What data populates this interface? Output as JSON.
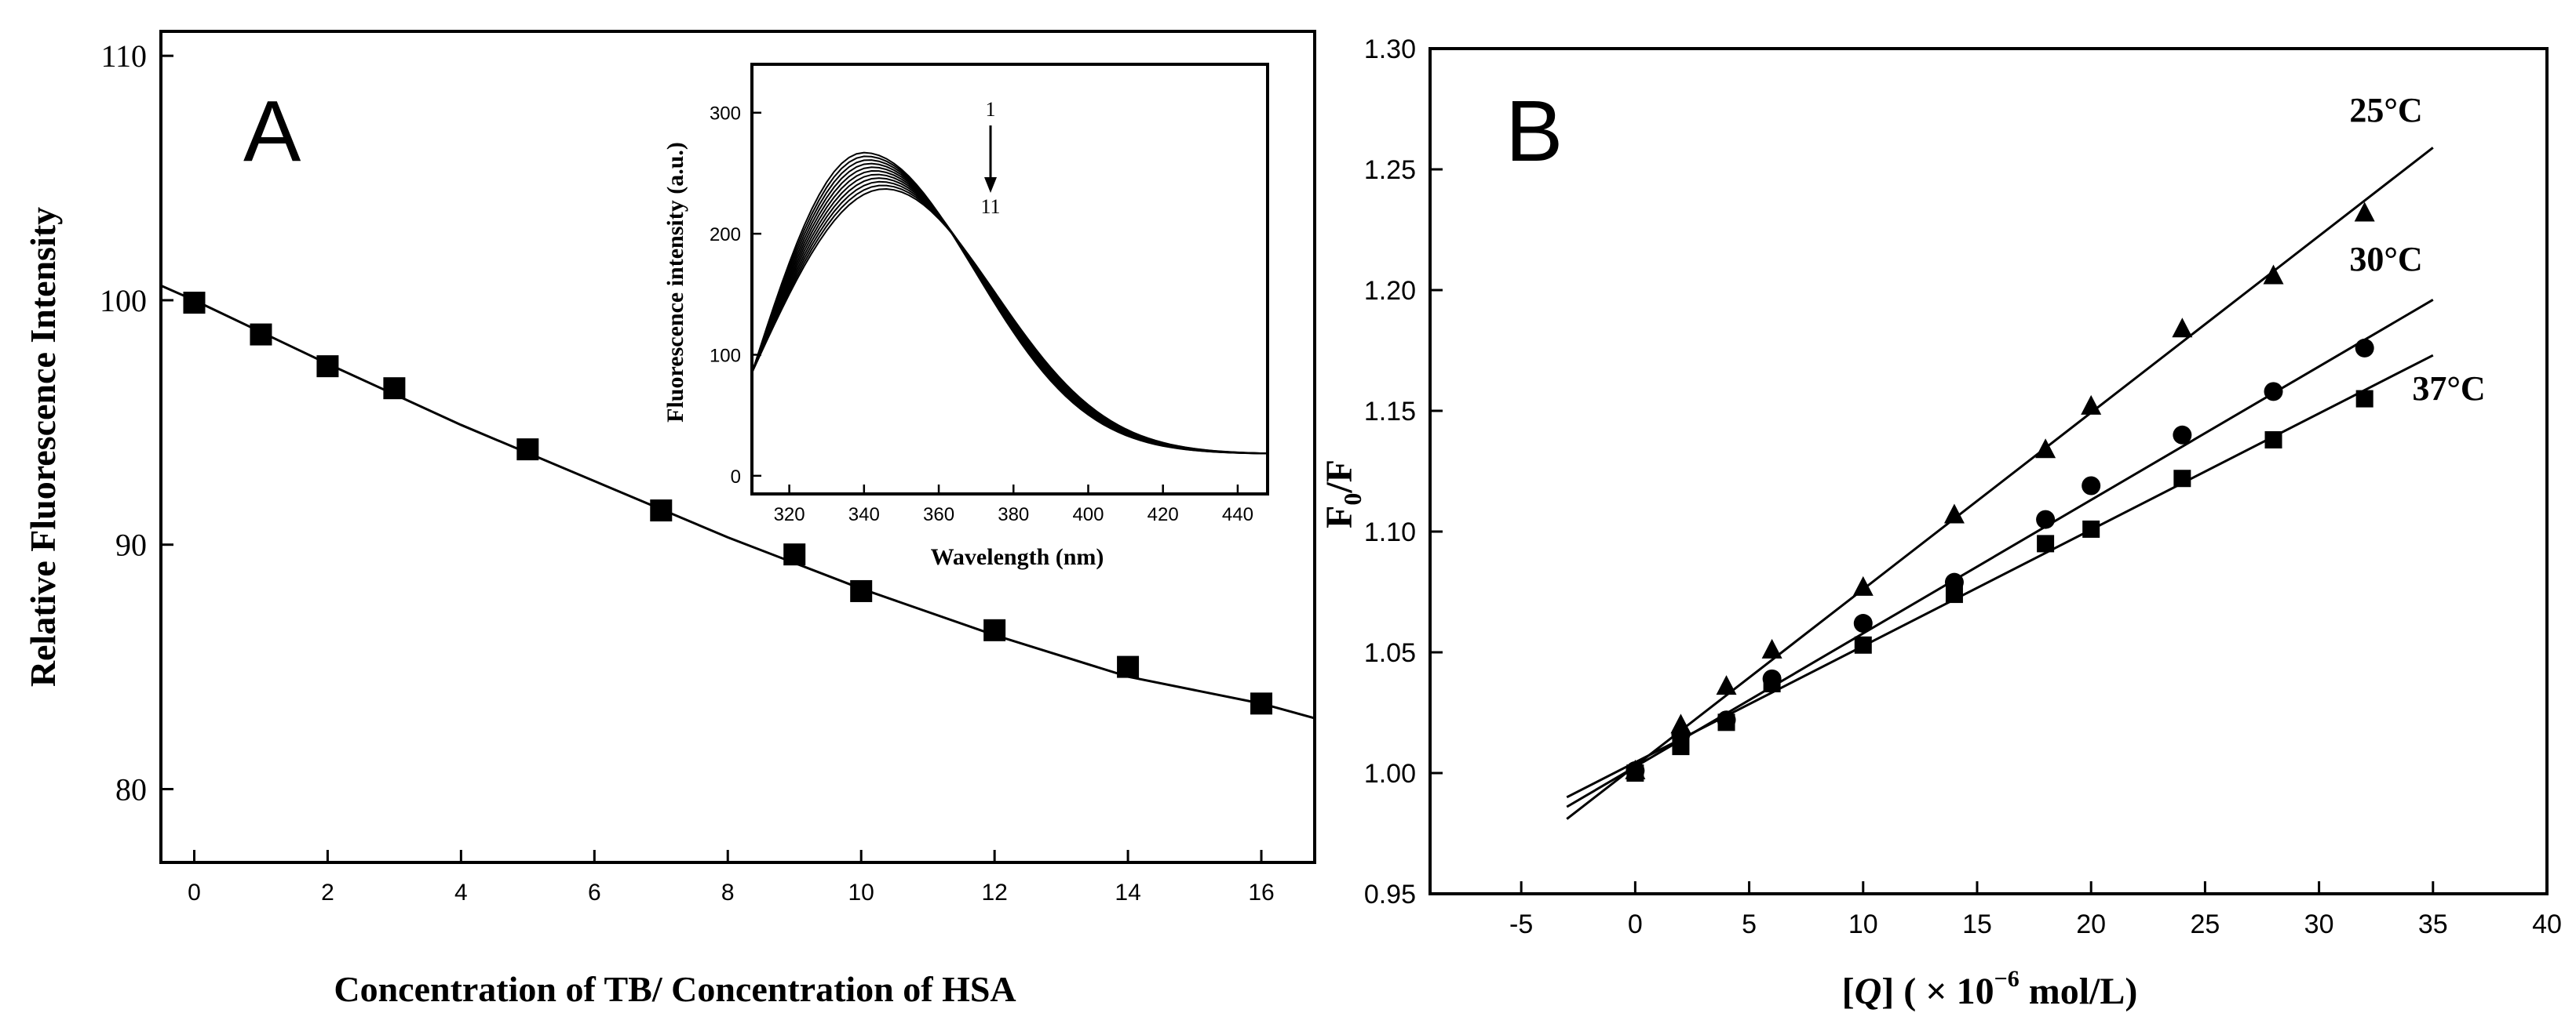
{
  "chart_data": [
    {
      "panel": "A",
      "panel_label": "A",
      "type": "scatter",
      "xlabel": "Concentration of TB/ Concentration of HSA",
      "ylabel": "Relative Fluorescence Intensity",
      "xlim": [
        -0.5,
        16.8
      ],
      "ylim": [
        77,
        111
      ],
      "xticks": [
        0,
        2,
        4,
        6,
        8,
        10,
        12,
        14,
        16
      ],
      "yticks": [
        80,
        90,
        100,
        110
      ],
      "points": {
        "x": [
          0,
          1,
          2,
          3,
          5,
          7,
          9,
          10,
          12,
          14,
          16
        ],
        "y": [
          99.9,
          98.6,
          97.3,
          96.4,
          93.9,
          91.4,
          89.6,
          88.1,
          86.5,
          85.0,
          83.5
        ]
      },
      "fit_curve": {
        "x": [
          -0.5,
          0,
          2,
          4,
          6,
          8,
          10,
          12,
          14,
          16,
          16.8
        ],
        "y": [
          100.6,
          100.0,
          97.4,
          94.9,
          92.6,
          90.3,
          88.2,
          86.3,
          84.6,
          83.5,
          82.9
        ]
      },
      "inset": {
        "type": "line",
        "xlabel": "Wavelength (nm)",
        "ylabel": "Fluorescence intensity (a.u.)",
        "xlim": [
          310,
          448
        ],
        "ylim": [
          -15,
          340
        ],
        "xticks": [
          320,
          340,
          360,
          380,
          400,
          420,
          440
        ],
        "yticks": [
          0,
          100,
          200,
          300
        ],
        "arrow_start_label": "1",
        "arrow_end_label": "11",
        "series_peak_values": [
          267,
          264,
          261,
          258,
          255,
          252,
          249,
          246,
          243,
          240,
          237
        ]
      }
    },
    {
      "panel": "B",
      "panel_label": "B",
      "type": "scatter",
      "xlabel_parts": {
        "open": "[",
        "var": "Q",
        "mid": "] ( × 10",
        "sup": "−6",
        "end": " mol/L)"
      },
      "ylabel_parts": {
        "main": "F",
        "sub": "0",
        "end": "/F"
      },
      "xlim": [
        -9,
        40
      ],
      "ylim": [
        0.95,
        1.3
      ],
      "xticks": [
        -5,
        0,
        5,
        10,
        15,
        20,
        25,
        30,
        35,
        40
      ],
      "yticks": [
        0.95,
        1.0,
        1.05,
        1.1,
        1.15,
        1.2,
        1.25,
        1.3
      ],
      "series": [
        {
          "name": "25°C",
          "marker": "triangle",
          "x": [
            0,
            2,
            4,
            6,
            10,
            14,
            18,
            20,
            24,
            28,
            32
          ],
          "y": [
            1.001,
            1.02,
            1.036,
            1.051,
            1.077,
            1.107,
            1.134,
            1.152,
            1.184,
            1.206,
            1.232
          ],
          "fit": {
            "x": [
              -3,
              35
            ],
            "y": [
              0.981,
              1.259
            ]
          }
        },
        {
          "name": "30°C",
          "marker": "circle",
          "x": [
            0,
            2,
            4,
            6,
            10,
            14,
            18,
            20,
            24,
            28,
            32
          ],
          "y": [
            1.001,
            1.016,
            1.022,
            1.039,
            1.062,
            1.079,
            1.105,
            1.119,
            1.14,
            1.158,
            1.176
          ],
          "fit": {
            "x": [
              -3,
              35
            ],
            "y": [
              0.986,
              1.196
            ]
          }
        },
        {
          "name": "37°C",
          "marker": "square",
          "x": [
            0,
            2,
            4,
            6,
            10,
            14,
            18,
            20,
            24,
            28,
            32
          ],
          "y": [
            1.0,
            1.011,
            1.021,
            1.037,
            1.053,
            1.074,
            1.095,
            1.101,
            1.122,
            1.138,
            1.155
          ],
          "fit": {
            "x": [
              -3,
              35
            ],
            "y": [
              0.99,
              1.173
            ]
          }
        }
      ]
    }
  ]
}
